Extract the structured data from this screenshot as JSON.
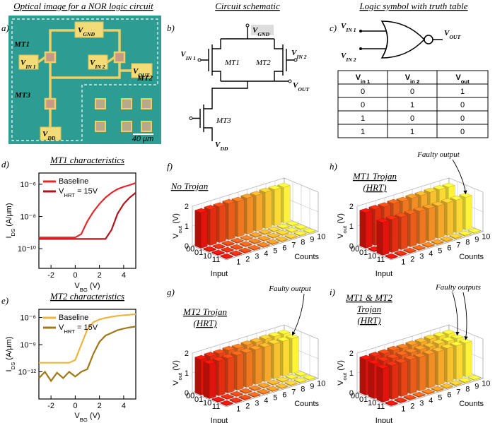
{
  "panel_a": {
    "letter": "a)",
    "title": "Optical image for a NOR logic circuit",
    "mt1": "MT1",
    "mt2": "MT2",
    "mt3": "MT3",
    "vgnd": [
      "V",
      "GND"
    ],
    "vin1": [
      "V",
      "IN 1"
    ],
    "vin2": [
      "V",
      "IN 2"
    ],
    "vout": [
      "V",
      "OUT"
    ],
    "vdd": [
      "V",
      "DD"
    ],
    "scale_bar": "40 μm"
  },
  "panel_b": {
    "letter": "b)",
    "title": "Circuit schematic",
    "vgnd": [
      "V",
      "GND"
    ],
    "vin1": [
      "V",
      "IN 1"
    ],
    "vin2": [
      "V",
      "IN 2"
    ],
    "vout": [
      "V",
      "OUT"
    ],
    "vdd": [
      "V",
      "DD"
    ],
    "mt1": "MT1",
    "mt2": "MT2",
    "mt3": "MT3"
  },
  "panel_c": {
    "letter": "c)",
    "title": "Logic symbol with truth table",
    "vin1": [
      "V",
      "IN 1"
    ],
    "vin2": [
      "V",
      "IN 2"
    ],
    "vout": [
      "V",
      "OUT"
    ],
    "table": {
      "header": [
        [
          "V",
          "in 1"
        ],
        [
          "V",
          "in 2"
        ],
        [
          "V",
          "out"
        ]
      ],
      "rows": [
        [
          "0",
          "0",
          "1"
        ],
        [
          "0",
          "1",
          "0"
        ],
        [
          "1",
          "0",
          "0"
        ],
        [
          "1",
          "1",
          "0"
        ]
      ]
    }
  },
  "chart_data": [
    {
      "type": "line",
      "panel": "d)",
      "title": "MT1 characteristics",
      "xlabel": [
        "V",
        "BG",
        " (V)"
      ],
      "ylabel": [
        "I",
        "DS",
        " (A/μm)"
      ],
      "xlim": [
        -3,
        5
      ],
      "xticks": [
        -2,
        0,
        2,
        4
      ],
      "log_y": true,
      "ylim": [
        6e-12,
        5e-06
      ],
      "yticks": [
        {
          "value": 1e-10,
          "label": "10⁻¹⁰"
        },
        {
          "value": 1e-08,
          "label": "10⁻⁸"
        },
        {
          "value": 1e-06,
          "label": "10⁻⁶"
        }
      ],
      "legend": "upper left",
      "x": [
        -3,
        -2.5,
        -2,
        -1.5,
        -1,
        -0.5,
        0,
        0.5,
        1,
        1.5,
        2,
        2.5,
        3,
        3.5,
        4,
        4.5,
        5
      ],
      "series": [
        {
          "name": "Baseline",
          "color": "#e8262a",
          "values": [
            5e-10,
            5e-10,
            5e-10,
            5e-10,
            5e-10,
            5e-10,
            5e-10,
            8e-10,
            5e-09,
            2e-08,
            6e-08,
            1.5e-07,
            3e-07,
            5e-07,
            7e-07,
            9e-07,
            1.2e-06
          ]
        },
        {
          "name": [
            "V",
            "HRT",
            " = 15V"
          ],
          "color": "#b3141c",
          "values": [
            4e-10,
            4e-10,
            4e-10,
            4e-10,
            4e-10,
            4e-10,
            4e-10,
            4e-10,
            4e-10,
            4e-10,
            4e-10,
            4e-10,
            1.5e-09,
            1.5e-08,
            6e-08,
            1.5e-07,
            3e-07
          ]
        }
      ]
    },
    {
      "type": "line",
      "panel": "e)",
      "title": "MT2 characteristics",
      "xlabel": [
        "V",
        "BG",
        " (V)"
      ],
      "ylabel": [
        "I",
        "DS",
        " (A/μm)"
      ],
      "xlim": [
        -3,
        5
      ],
      "xticks": [
        -2,
        0,
        2,
        4
      ],
      "log_y": true,
      "ylim": [
        1e-15,
        8e-06
      ],
      "yticks": [
        {
          "value": 1e-12,
          "label": "10⁻¹²"
        },
        {
          "value": 1e-09,
          "label": "10⁻⁹"
        },
        {
          "value": 1e-06,
          "label": "10⁻⁶"
        }
      ],
      "legend": "upper left",
      "x": [
        -3,
        -2.5,
        -2,
        -1.5,
        -1,
        -0.5,
        0,
        0.5,
        1,
        1.5,
        2,
        2.5,
        3,
        3.5,
        4,
        4.5,
        5
      ],
      "series": [
        {
          "name": "Baseline",
          "color": "#f0b43c",
          "values": [
            1e-11,
            1e-11,
            1e-11,
            1e-11,
            1e-11,
            1e-11,
            2e-11,
            1e-09,
            5e-08,
            3e-07,
            6e-07,
            9e-07,
            1.2e-06,
            1.5e-06,
            1.8e-06,
            2e-06,
            2.3e-06
          ]
        },
        {
          "name": [
            "V",
            "HRT",
            " = 15V"
          ],
          "color": "#a07818",
          "values": [
            2e-13,
            1e-12,
            1e-13,
            8e-13,
            2e-13,
            1e-12,
            3e-13,
            1e-12,
            2e-12,
            1e-10,
            2e-09,
            1e-08,
            2e-08,
            4e-08,
            6e-08,
            8e-08,
            1e-07
          ]
        }
      ]
    },
    {
      "type": "bar3d",
      "panel": "f)",
      "title": [
        "No Trojan"
      ],
      "zlabel": [
        "V",
        "out",
        " (V)"
      ],
      "xlabel": "Counts",
      "ylabel": "Input",
      "x": [
        1,
        2,
        3,
        4,
        5,
        6,
        7,
        8,
        9,
        10
      ],
      "zlim": [
        0,
        2
      ],
      "zticks": [
        0,
        1,
        2
      ],
      "colormap": [
        "#e0140c",
        "#fff23a"
      ],
      "rows": [
        {
          "input": "00",
          "values": [
            1.8,
            1.82,
            1.81,
            1.83,
            1.8,
            1.82,
            1.81,
            1.83,
            1.82,
            1.8
          ]
        },
        {
          "input": "01",
          "values": [
            0.05,
            0.04,
            0.05,
            0.05,
            0.04,
            0.05,
            0.05,
            0.04,
            0.05,
            0.05
          ]
        },
        {
          "input": "10",
          "values": [
            0.05,
            0.05,
            0.04,
            0.05,
            0.05,
            0.04,
            0.05,
            0.05,
            0.04,
            0.05
          ]
        },
        {
          "input": "11",
          "values": [
            0.04,
            0.05,
            0.05,
            0.04,
            0.05,
            0.05,
            0.04,
            0.05,
            0.05,
            0.04
          ]
        }
      ]
    },
    {
      "type": "bar3d",
      "panel": "h)",
      "title": [
        "MT1 Trojan",
        "(HRT)"
      ],
      "annotation": "Faulty output",
      "zlabel": [
        "V",
        "out",
        " (V)"
      ],
      "xlabel": "Counts",
      "ylabel": "Input",
      "x": [
        1,
        2,
        3,
        4,
        5,
        6,
        7,
        8,
        9,
        10
      ],
      "zlim": [
        0,
        2
      ],
      "zticks": [
        0,
        1,
        2
      ],
      "colormap": [
        "#e0140c",
        "#fff23a"
      ],
      "rows": [
        {
          "input": "00",
          "values": [
            1.8,
            1.82,
            1.81,
            1.83,
            1.8,
            1.82,
            1.81,
            1.83,
            1.82,
            1.8
          ]
        },
        {
          "input": "01",
          "values": [
            0.05,
            0.04,
            0.05,
            0.05,
            0.04,
            0.05,
            0.05,
            0.04,
            0.05,
            0.05
          ]
        },
        {
          "input": "10",
          "values": [
            1.65,
            1.66,
            1.64,
            1.65,
            1.66,
            1.65,
            1.64,
            1.66,
            1.65,
            1.65
          ]
        },
        {
          "input": "11",
          "values": [
            0.04,
            0.05,
            0.05,
            0.04,
            0.05,
            0.05,
            0.04,
            0.05,
            0.05,
            0.04
          ]
        }
      ]
    },
    {
      "type": "bar3d",
      "panel": "g)",
      "title": [
        "MT2 Trojan",
        "(HRT)"
      ],
      "annotation": "Faulty output",
      "zlabel": [
        "V",
        "out",
        " (V)"
      ],
      "xlabel": "Counts",
      "ylabel": "Input",
      "x": [
        1,
        2,
        3,
        4,
        5,
        6,
        7,
        8,
        9,
        10
      ],
      "zlim": [
        0,
        2
      ],
      "zticks": [
        0,
        1,
        2
      ],
      "colormap": [
        "#e0140c",
        "#fff23a"
      ],
      "rows": [
        {
          "input": "00",
          "values": [
            1.8,
            1.82,
            1.81,
            1.83,
            1.8,
            1.82,
            1.81,
            1.83,
            1.82,
            1.8
          ]
        },
        {
          "input": "01",
          "values": [
            1.75,
            1.76,
            1.75,
            1.77,
            1.75,
            1.76,
            1.75,
            1.77,
            1.76,
            1.75
          ]
        },
        {
          "input": "10",
          "values": [
            0.05,
            0.05,
            0.04,
            0.05,
            0.05,
            0.04,
            0.05,
            0.05,
            0.04,
            0.05
          ]
        },
        {
          "input": "11",
          "values": [
            0.04,
            0.05,
            0.05,
            0.04,
            0.05,
            0.05,
            0.04,
            0.05,
            0.05,
            0.04
          ]
        }
      ]
    },
    {
      "type": "bar3d",
      "panel": "i)",
      "title": [
        "MT1 & MT2",
        "Trojan",
        "(HRT)"
      ],
      "annotation": "Faulty outputs",
      "zlabel": [
        "V",
        "out",
        " (V)"
      ],
      "xlabel": "Counts",
      "ylabel": "Input",
      "x": [
        1,
        2,
        3,
        4,
        5,
        6,
        7,
        8,
        9,
        10
      ],
      "zlim": [
        0,
        2
      ],
      "zticks": [
        0,
        1,
        2
      ],
      "colormap": [
        "#e0140c",
        "#fff23a"
      ],
      "rows": [
        {
          "input": "00",
          "values": [
            1.8,
            1.82,
            1.81,
            1.83,
            1.8,
            1.82,
            1.81,
            1.83,
            1.82,
            1.8
          ]
        },
        {
          "input": "01",
          "values": [
            1.75,
            1.76,
            1.75,
            1.77,
            1.75,
            1.76,
            1.75,
            1.77,
            1.76,
            1.75
          ]
        },
        {
          "input": "10",
          "values": [
            1.7,
            1.71,
            1.7,
            1.72,
            1.7,
            1.71,
            1.7,
            1.72,
            1.71,
            1.7
          ]
        },
        {
          "input": "11",
          "values": [
            0.04,
            0.05,
            0.05,
            0.04,
            0.05,
            0.05,
            0.04,
            0.05,
            0.05,
            0.04
          ]
        }
      ]
    }
  ]
}
